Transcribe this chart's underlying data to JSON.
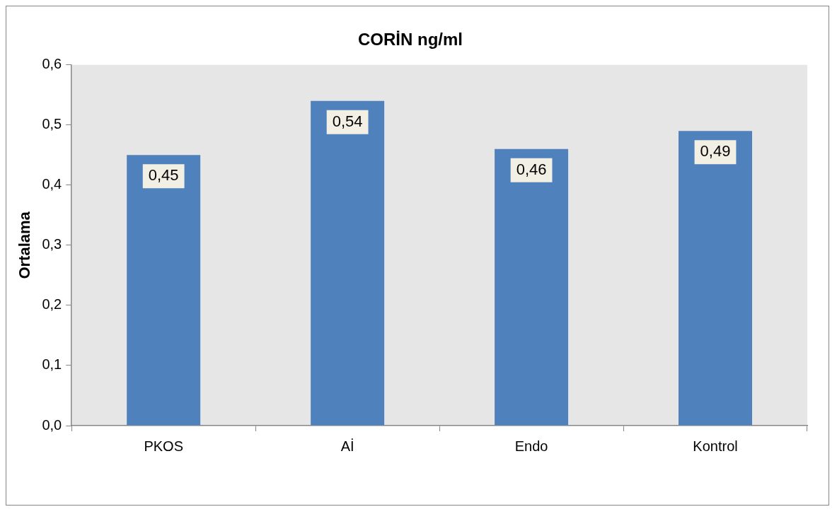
{
  "chart_data": {
    "type": "bar",
    "title": "CORİN ng/ml",
    "ylabel": "Ortalama",
    "categories": [
      "PKOS",
      "Aİ",
      "Endo",
      "Kontrol"
    ],
    "values": [
      0.45,
      0.54,
      0.46,
      0.49
    ],
    "value_labels": [
      "0,45",
      "0,54",
      "0,46",
      "0,49"
    ],
    "color": "#4f81bd",
    "ylim": [
      0,
      0.6
    ],
    "yticks": [
      {
        "value": 0,
        "label": "0,0"
      },
      {
        "value": 0.1,
        "label": "0,1"
      },
      {
        "value": 0.2,
        "label": "0,2"
      },
      {
        "value": 0.3,
        "label": "0,3"
      },
      {
        "value": 0.4,
        "label": "0,4"
      },
      {
        "value": 0.5,
        "label": "0,5"
      },
      {
        "value": 0.6,
        "label": "0,6"
      }
    ],
    "grid": false,
    "legend": false
  }
}
